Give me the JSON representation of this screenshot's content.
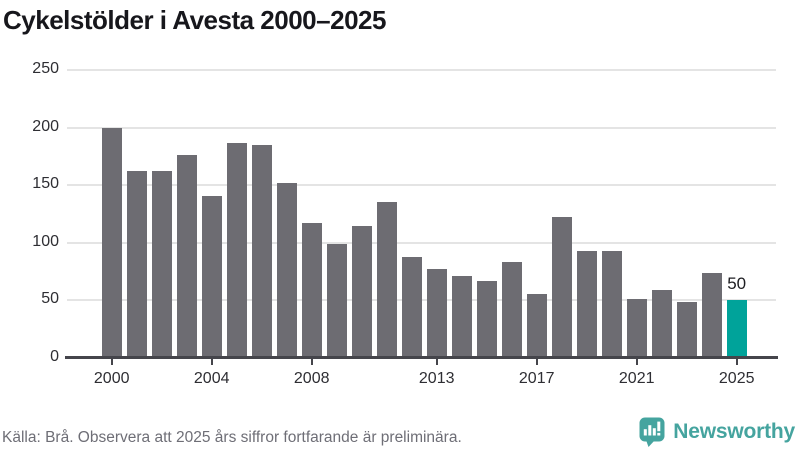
{
  "title": "Cykelstölder i Avesta 2000–2025",
  "footer": {
    "source": "Källa: Brå. Observera att 2025 års siffror fortfarande är preliminära.",
    "brand": "Newsworthy"
  },
  "colors": {
    "bar": "#6d6c72",
    "bar_highlight": "#00a39a",
    "gridline": "#e4e4e4",
    "axis": "#45454b",
    "title_text": "#17171c",
    "muted_text": "#6e6e76",
    "brand_teal": "#45a49f"
  },
  "chart_data": {
    "type": "bar",
    "title": "Cykelstölder i Avesta 2000–2025",
    "categories": [
      2000,
      2001,
      2002,
      2003,
      2004,
      2005,
      2006,
      2007,
      2008,
      2009,
      2010,
      2011,
      2012,
      2013,
      2014,
      2015,
      2016,
      2017,
      2018,
      2019,
      2020,
      2021,
      2022,
      2023,
      2024,
      2025
    ],
    "values": [
      200,
      162,
      162,
      176,
      141,
      187,
      185,
      152,
      117,
      99,
      115,
      135,
      88,
      77,
      71,
      67,
      83,
      56,
      122,
      93,
      93,
      51,
      59,
      49,
      74,
      50
    ],
    "highlight": {
      "index": 25
    },
    "data_labels": [
      {
        "index": 25,
        "text": "50"
      }
    ],
    "yticks": [
      0,
      50,
      100,
      150,
      200,
      250
    ],
    "xticks": [
      2000,
      2004,
      2008,
      2013,
      2017,
      2021,
      2025
    ],
    "ylim": [
      0,
      250
    ],
    "grid": true,
    "legend": false,
    "xlabel": "",
    "ylabel": ""
  }
}
